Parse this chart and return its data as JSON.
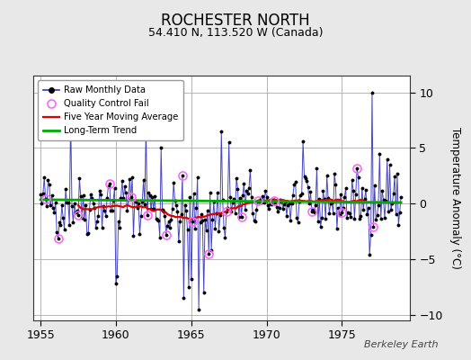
{
  "title": "ROCHESTER NORTH",
  "subtitle": "54.410 N, 113.520 W (Canada)",
  "ylabel": "Temperature Anomaly (°C)",
  "watermark": "Berkeley Earth",
  "xlim": [
    1954.5,
    1979.5
  ],
  "ylim": [
    -10.5,
    11.5
  ],
  "yticks": [
    -10,
    -5,
    0,
    5,
    10
  ],
  "xticks": [
    1955,
    1960,
    1965,
    1970,
    1975
  ],
  "line_color": "#3333bb",
  "marker_color": "#000000",
  "ma_color": "#dd0000",
  "trend_color": "#00aa00",
  "qc_color": "#ff66ff",
  "background_color": "#e8e8e8",
  "plot_bg_color": "#ffffff",
  "grid_color": "#aaaaaa",
  "seed": 42,
  "n_months": 288,
  "start_year": 1955,
  "title_fontsize": 12,
  "subtitle_fontsize": 9,
  "qc_fail_indices": [
    4,
    14,
    30,
    55,
    72,
    85,
    100,
    113,
    121,
    134,
    148,
    160,
    173,
    186,
    216,
    240,
    252,
    265
  ]
}
